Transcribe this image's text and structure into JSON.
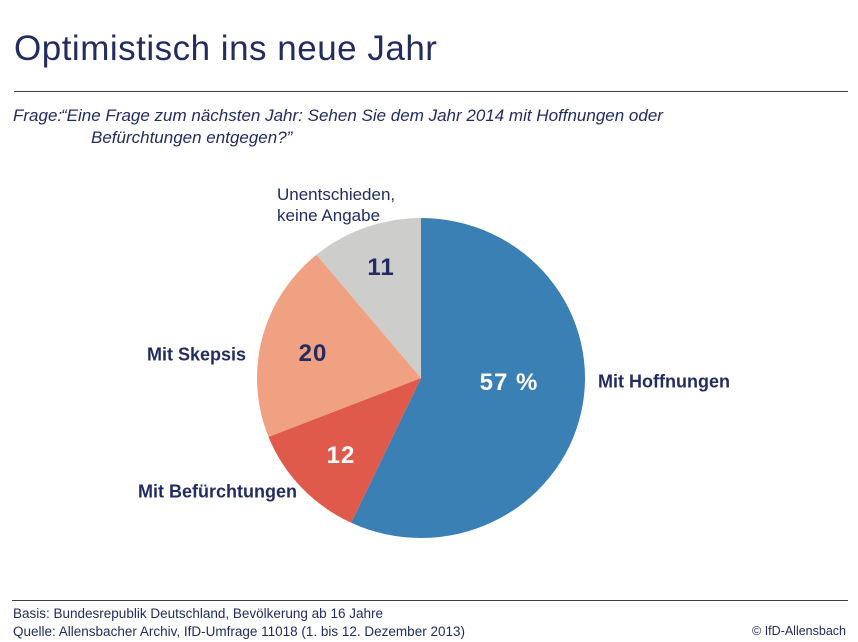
{
  "page": {
    "title": "Optimistisch ins neue Jahr"
  },
  "question": {
    "label": "Frage:",
    "line1": "“Eine Frage zum nächsten Jahr: Sehen Sie dem Jahr 2014 mit Hoffnungen oder",
    "line2": "Befürchtungen entgegen?”"
  },
  "chart_data": {
    "type": "pie",
    "title": "Optimistisch ins neue Jahr",
    "unit": "percent",
    "start_angle_deg": -90,
    "direction": "clockwise",
    "total": 100,
    "slices": [
      {
        "label": "Mit Hoffnungen",
        "value": 57,
        "value_display": "57 %",
        "color": "#3a80b5"
      },
      {
        "label": "Mit Befürchtungen",
        "value": 12,
        "value_display": "12",
        "color": "#e05a4b"
      },
      {
        "label": "Mit Skepsis",
        "value": 20,
        "value_display": "20",
        "color": "#f0a182"
      },
      {
        "label": "Unentschieden,\nkeine Angabe",
        "value": 11,
        "value_display": "11",
        "color": "#cdcdcb"
      }
    ]
  },
  "footer": {
    "basis": "Basis: Bundesrepublik Deutschland, Bevölkerung ab 16 Jahre",
    "quelle": "Quelle: Allensbacher Archiv, IfD-Umfrage 11018 (1. bis 12. Dezember 2013)",
    "copyright": "© IfD-Allensbach"
  },
  "colors": {
    "navy_text": "#222c5f",
    "rule_line": "#3f3f47",
    "background": "#ffffff"
  }
}
